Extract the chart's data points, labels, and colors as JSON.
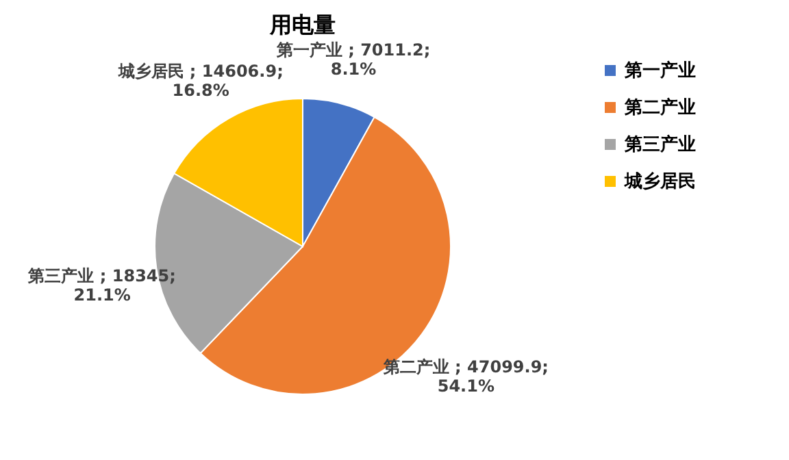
{
  "chart_data": {
    "type": "pie",
    "title": "用电量",
    "categories": [
      "第一产业",
      "第二产业",
      "第三产业",
      "城乡居民"
    ],
    "values": [
      7011.2,
      47099.9,
      18345,
      14606.9
    ],
    "colors": [
      "#4472c4",
      "#ed7d31",
      "#a5a5a5",
      "#ffc000"
    ],
    "value_labels": [
      "第一产业 ; 7011.2; 8.1%",
      "第二产业 ; 47099.9; 54.1%",
      "第三产业 ; 18345; 21.1%",
      "城乡居民 ; 14606.9; 16.8%"
    ],
    "legend": "right"
  }
}
